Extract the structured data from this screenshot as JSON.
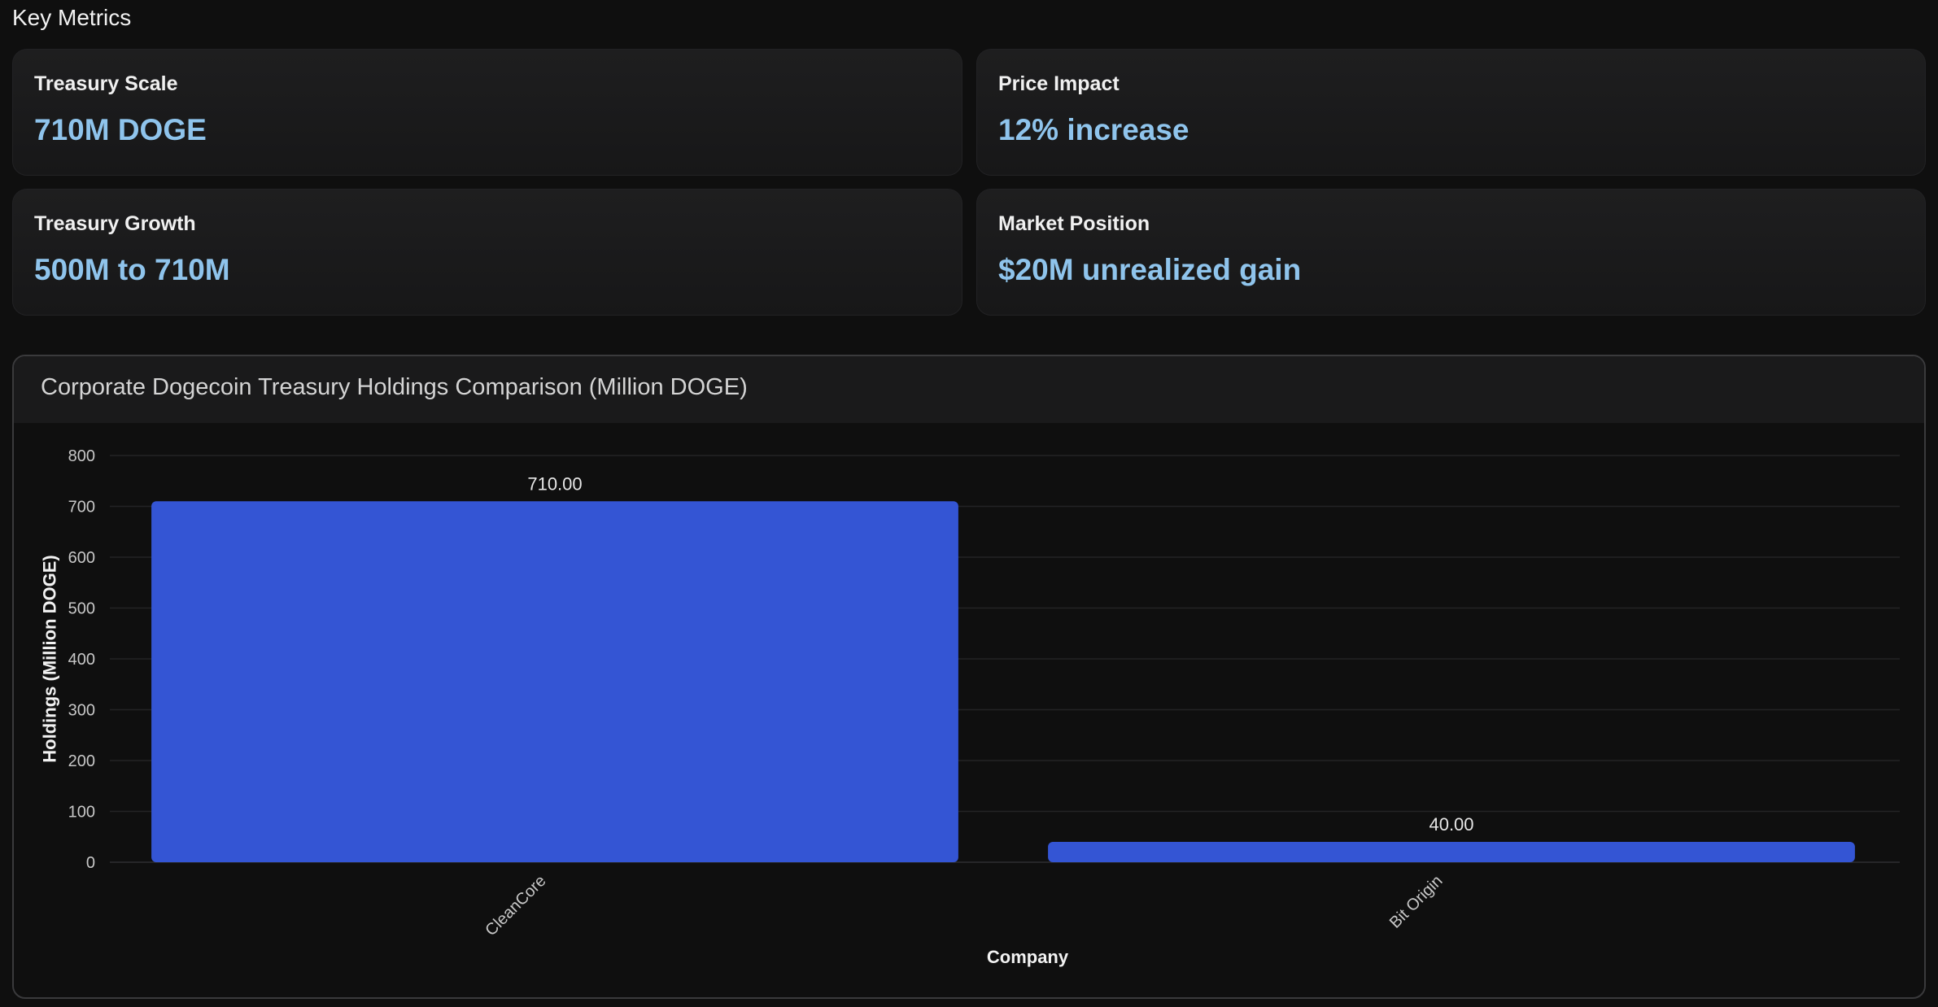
{
  "section": {
    "title": "Key Metrics"
  },
  "metrics": [
    {
      "label": "Treasury Scale",
      "value": "710M DOGE"
    },
    {
      "label": "Price Impact",
      "value": "12% increase"
    },
    {
      "label": "Treasury Growth",
      "value": "500M to 710M"
    },
    {
      "label": "Market Position",
      "value": "$20M unrealized gain"
    }
  ],
  "colors": {
    "accent_value": "#8fc4ec",
    "bar": "#3455d4"
  },
  "chart_data": {
    "type": "bar",
    "title": "Corporate Dogecoin Treasury Holdings Comparison (Million DOGE)",
    "categories": [
      "CleanCore",
      "Bit Origin"
    ],
    "values": [
      710,
      40
    ],
    "value_labels": [
      "710.00",
      "40.00"
    ],
    "xlabel": "Company",
    "ylabel": "Holdings (Million DOGE)",
    "ylim": [
      0,
      800
    ],
    "yticks": [
      0,
      100,
      200,
      300,
      400,
      500,
      600,
      700,
      800
    ],
    "grid": true,
    "legend": "none"
  }
}
